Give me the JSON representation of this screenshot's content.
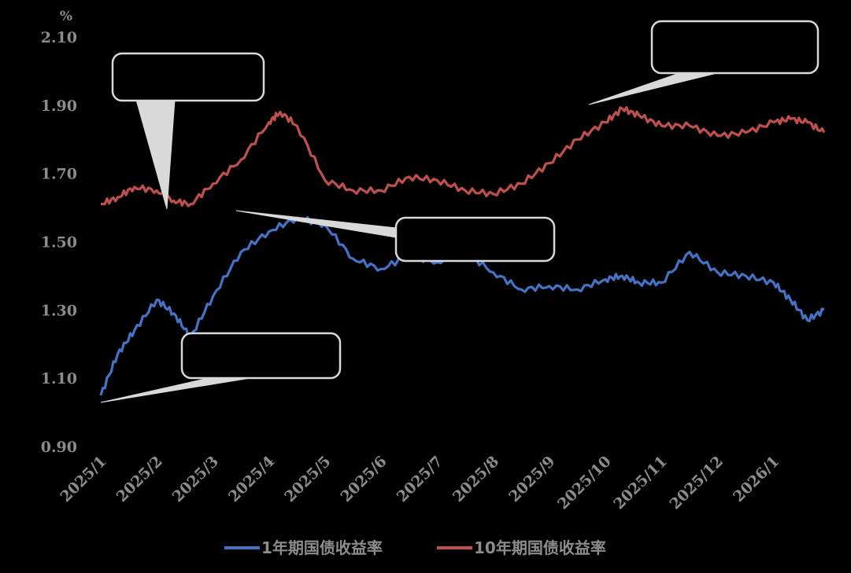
{
  "chart_data": {
    "type": "line",
    "y_unit": "%",
    "ylim": [
      0.9,
      2.1
    ],
    "y_ticks": [
      "2.10",
      "1.90",
      "1.70",
      "1.50",
      "1.30",
      "1.10",
      "0.90"
    ],
    "x_ticks": [
      "2025/1",
      "2025/2",
      "2025/3",
      "2025/4",
      "2025/5",
      "2025/6",
      "2025/7",
      "2025/8",
      "2025/9",
      "2025/10",
      "2025/11",
      "2025/12",
      "2026/1"
    ],
    "grid": false,
    "legend_position": "bottom",
    "series": [
      {
        "name": "1年期国债收益率",
        "color": "#4472c4",
        "x": [
          0,
          0.3,
          0.6,
          1.0,
          1.3,
          1.6,
          2.0,
          2.5,
          3.0,
          3.5,
          4.0,
          4.5,
          5.0,
          5.5,
          6.0,
          6.5,
          7.0,
          7.5,
          8.0,
          8.5,
          9.0,
          9.3,
          9.6,
          10.0,
          10.5,
          11.0,
          11.5,
          12.0,
          12.3,
          12.6,
          12.9
        ],
        "values": [
          1.05,
          1.17,
          1.24,
          1.33,
          1.29,
          1.22,
          1.34,
          1.47,
          1.53,
          1.57,
          1.55,
          1.45,
          1.42,
          1.46,
          1.44,
          1.47,
          1.41,
          1.36,
          1.37,
          1.36,
          1.39,
          1.4,
          1.38,
          1.38,
          1.47,
          1.41,
          1.4,
          1.38,
          1.33,
          1.27,
          1.3
        ]
      },
      {
        "name": "10年期国债收益率",
        "color": "#c0504d",
        "x": [
          0,
          0.3,
          0.6,
          1.0,
          1.3,
          1.6,
          2.0,
          2.5,
          3.0,
          3.2,
          3.5,
          4.0,
          4.5,
          5.0,
          5.5,
          6.0,
          6.5,
          7.0,
          7.5,
          8.0,
          8.5,
          9.0,
          9.3,
          9.6,
          10.0,
          10.5,
          11.0,
          11.5,
          12.0,
          12.3,
          12.6,
          12.9
        ],
        "values": [
          1.61,
          1.63,
          1.66,
          1.65,
          1.62,
          1.61,
          1.67,
          1.74,
          1.85,
          1.88,
          1.84,
          1.68,
          1.65,
          1.65,
          1.69,
          1.68,
          1.65,
          1.64,
          1.67,
          1.73,
          1.8,
          1.85,
          1.89,
          1.87,
          1.84,
          1.84,
          1.81,
          1.82,
          1.85,
          1.86,
          1.85,
          1.82
        ]
      }
    ],
    "annotations": [
      {
        "text": ""
      },
      {
        "text": ""
      },
      {
        "text": ""
      },
      {
        "text": ""
      }
    ]
  }
}
